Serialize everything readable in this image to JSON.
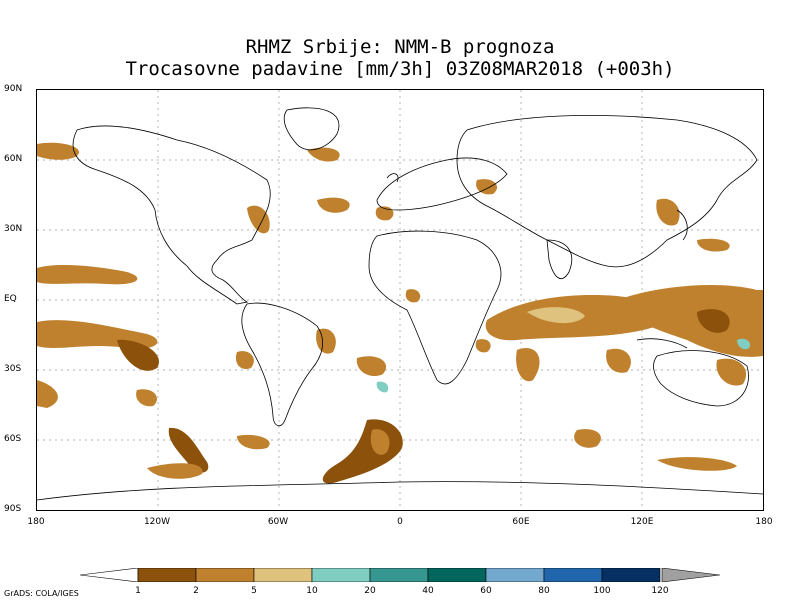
{
  "title_line1": "RHMZ Srbije: NMM-B prognoza",
  "title_line2": "Trocasovne padavine [mm/3h] 03Z08MAR2018 (+003h)",
  "lat_labels": [
    "90N",
    "60N",
    "30N",
    "EQ",
    "30S",
    "60S",
    "90S"
  ],
  "lon_labels": [
    "180",
    "120W",
    "60W",
    "0",
    "60E",
    "120E",
    "180"
  ],
  "colorbar": {
    "ticks": [
      "1",
      "2",
      "5",
      "10",
      "20",
      "40",
      "60",
      "80",
      "100",
      "120"
    ],
    "colors": [
      "#8c510a",
      "#bf812d",
      "#dfc27d",
      "#80cdc1",
      "#35978f",
      "#01665e",
      "#74a9cf",
      "#2166ac",
      "#053061"
    ],
    "under_color": "#ffffff",
    "over_color": "#a0a0a0"
  },
  "credit": "GrADS: COLA/IGES"
}
